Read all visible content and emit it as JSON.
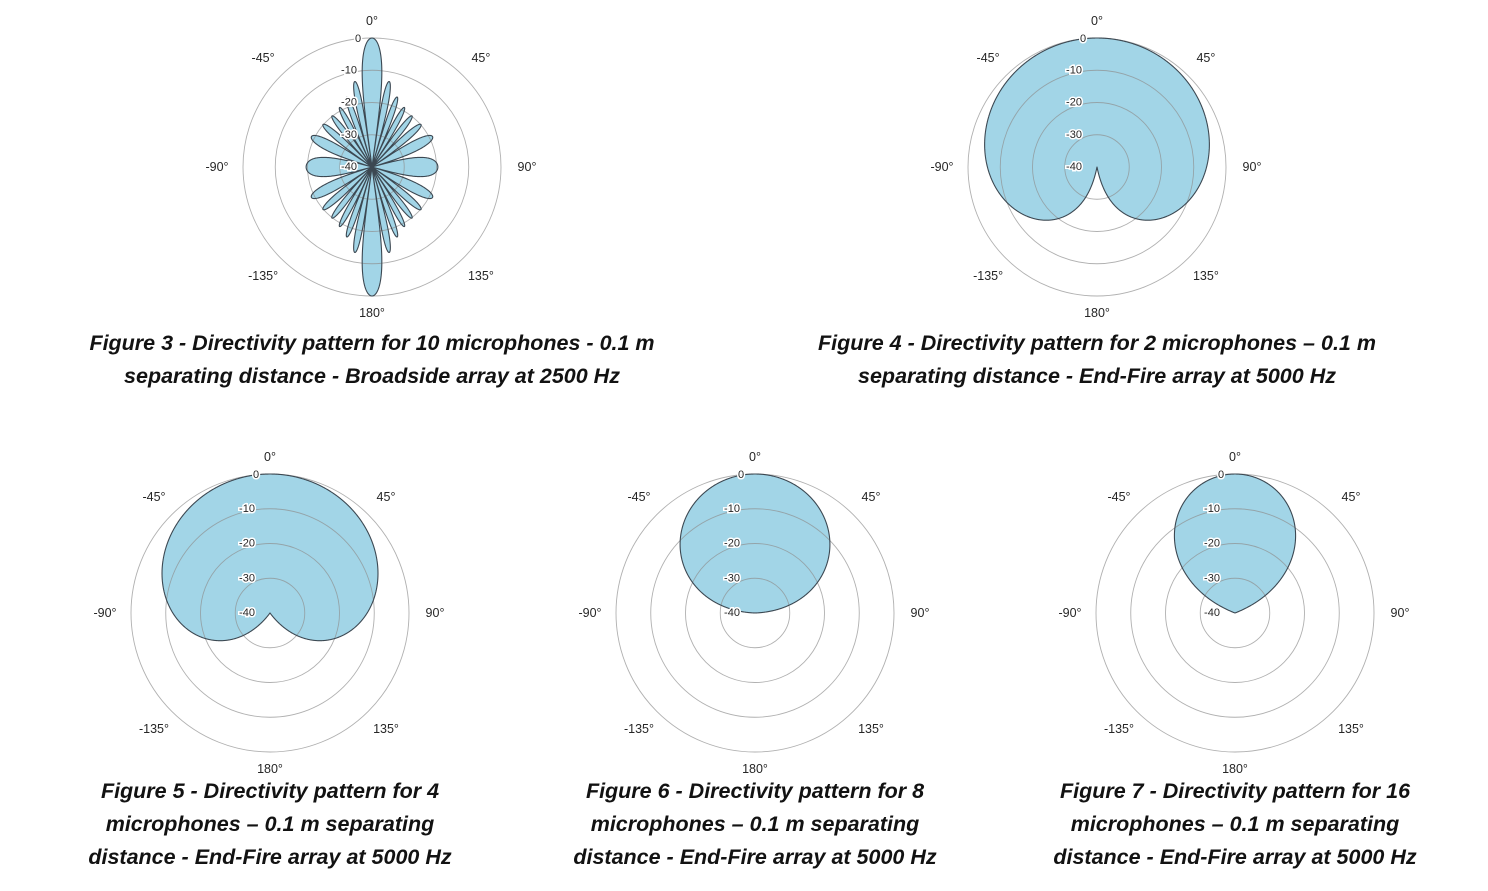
{
  "page": {
    "background": "#ffffff",
    "description": "Five polar directivity pattern charts for microphone arrays with figure captions"
  },
  "style": {
    "pattern_fill_color": "#a2d5e7",
    "pattern_outline_color": "#3c4852",
    "grid_color": "#8f8f8f",
    "tick_label_color": "#262626",
    "caption_color": "#121212"
  },
  "chart_data": {
    "axes_common": {
      "type": "polar",
      "zero_location": "top",
      "grid": "rings only, no spokes",
      "r_unit": "dB",
      "r_range_db": [
        -40,
        0
      ],
      "r_rings_db": [
        0,
        -10,
        -20,
        -30
      ],
      "angle_ticks": [
        {
          "deg": 0,
          "label": "0°"
        },
        {
          "deg": 45,
          "label": "45°"
        },
        {
          "deg": 90,
          "label": "90°"
        },
        {
          "deg": 135,
          "label": "135°"
        },
        {
          "deg": 180,
          "label": "180°"
        },
        {
          "deg": -135,
          "label": "-135°"
        },
        {
          "deg": -90,
          "label": "-90°"
        },
        {
          "deg": -45,
          "label": "-45°"
        }
      ],
      "r_ticks": [
        {
          "db": 0,
          "label": "0"
        },
        {
          "db": -10,
          "label": "-10"
        },
        {
          "db": -20,
          "label": "-20"
        },
        {
          "db": -30,
          "label": "-30"
        },
        {
          "db": -40,
          "label": "-40"
        }
      ]
    },
    "figures": [
      {
        "id": "figure-3",
        "caption": "Figure 3 - Directivity pattern for 10 microphones - 0.1 m\nseparating distance - Broadside array at 2500 Hz",
        "n_microphones": 10,
        "separating_distance_m": 0.1,
        "array_type": "Broadside",
        "frequency_hz": 2500,
        "pattern": {
          "model": "array_factor_broadside",
          "n": 10,
          "d_over_lambda": 0.729
        },
        "main_lobes_deg_db": [
          [
            0,
            0
          ],
          [
            180,
            0
          ]
        ],
        "side_lobe_peaks_deg_db_approx": [
          [
            11.9,
            -13.1
          ],
          [
            20.1,
            -17.0
          ],
          [
            28.7,
            -19.0
          ],
          [
            38.1,
            -19.9
          ],
          [
            48.9,
            -19.9
          ],
          [
            63.1,
            -19.0
          ],
          [
            90,
            -19.6
          ],
          [
            116.9,
            -19.0
          ],
          [
            131.1,
            -19.9
          ],
          [
            141.9,
            -19.9
          ],
          [
            151.3,
            -19.0
          ],
          [
            159.9,
            -17.0
          ],
          [
            168.1,
            -13.1
          ]
        ]
      },
      {
        "id": "figure-4",
        "caption": "Figure 4 - Directivity pattern for 2 microphones – 0.1 m\nseparating distance - End-Fire array at 5000 Hz",
        "n_microphones": 2,
        "separating_distance_m": 0.1,
        "array_type": "End-Fire",
        "frequency_hz": 5000,
        "pattern": {
          "model": "cardioid_power",
          "exponent": 1
        },
        "samples_deg_db": [
          [
            0,
            0
          ],
          [
            15,
            -0.1
          ],
          [
            30,
            -0.6
          ],
          [
            45,
            -1.4
          ],
          [
            60,
            -2.5
          ],
          [
            75,
            -4.0
          ],
          [
            90,
            -6.0
          ],
          [
            105,
            -8.6
          ],
          [
            120,
            -12.0
          ],
          [
            135,
            -16.7
          ],
          [
            150,
            -23.5
          ],
          [
            165,
            -35.4
          ],
          [
            180,
            -40
          ]
        ]
      },
      {
        "id": "figure-5",
        "caption": "Figure 5 - Directivity pattern for 4\nmicrophones – 0.1 m separating\ndistance - End-Fire array at 5000 Hz",
        "n_microphones": 4,
        "separating_distance_m": 0.1,
        "array_type": "End-Fire",
        "frequency_hz": 5000,
        "pattern": {
          "model": "cardioid_power",
          "exponent": 2
        },
        "samples_deg_db": [
          [
            0,
            0
          ],
          [
            15,
            -0.3
          ],
          [
            30,
            -1.2
          ],
          [
            45,
            -2.7
          ],
          [
            60,
            -5.0
          ],
          [
            75,
            -8.0
          ],
          [
            90,
            -12.0
          ],
          [
            105,
            -17.2
          ],
          [
            120,
            -24.1
          ],
          [
            135,
            -33.4
          ],
          [
            150,
            -40
          ],
          [
            165,
            -40
          ],
          [
            180,
            -40
          ]
        ]
      },
      {
        "id": "figure-6",
        "caption": "Figure 6 - Directivity pattern for 8\nmicrophones – 0.1 m separating\ndistance - End-Fire array at 5000 Hz",
        "n_microphones": 8,
        "separating_distance_m": 0.1,
        "array_type": "End-Fire",
        "frequency_hz": 5000,
        "pattern": {
          "model": "cardioid_power",
          "exponent": 7
        },
        "samples_deg_db": [
          [
            0,
            0
          ],
          [
            15,
            -1.0
          ],
          [
            30,
            -4.2
          ],
          [
            45,
            -9.6
          ],
          [
            60,
            -17.5
          ],
          [
            75,
            -28.2
          ],
          [
            90,
            -40
          ],
          [
            105,
            -40
          ],
          [
            120,
            -40
          ],
          [
            135,
            -40
          ],
          [
            150,
            -40
          ],
          [
            165,
            -40
          ],
          [
            180,
            -40
          ]
        ]
      },
      {
        "id": "figure-7",
        "caption": "Figure 7 - Directivity pattern for 16\nmicrophones – 0.1 m separating\ndistance - End-Fire array at 5000 Hz",
        "n_microphones": 16,
        "separating_distance_m": 0.1,
        "array_type": "End-Fire",
        "frequency_hz": 5000,
        "pattern": {
          "model": "cardioid_power",
          "exponent": 12
        },
        "samples_deg_db": [
          [
            0,
            0
          ],
          [
            15,
            -1.8
          ],
          [
            30,
            -7.2
          ],
          [
            45,
            -16.4
          ],
          [
            60,
            -30.0
          ],
          [
            75,
            -40
          ],
          [
            90,
            -40
          ],
          [
            105,
            -40
          ],
          [
            120,
            -40
          ],
          [
            135,
            -40
          ],
          [
            150,
            -40
          ],
          [
            165,
            -40
          ],
          [
            180,
            -40
          ]
        ]
      }
    ]
  }
}
